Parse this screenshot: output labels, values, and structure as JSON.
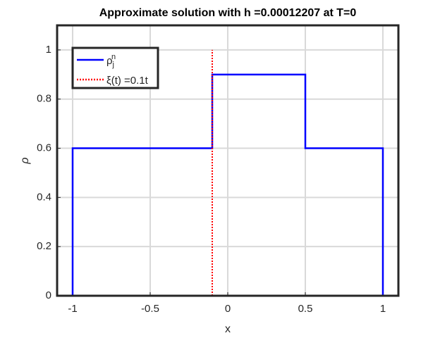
{
  "chart_data": {
    "type": "line",
    "title": "Approximate solution with h =0.00012207 at T=0",
    "x_label": "x",
    "y_label": "ρ",
    "series": [
      {
        "name": "ρ_j^n",
        "color": "#0000ff",
        "style": "solid",
        "x": [
          -1,
          -1,
          -0.1,
          -0.1,
          0.5,
          0.5,
          1,
          1
        ],
        "values": [
          0,
          0.6,
          0.6,
          0.9,
          0.9,
          0.6,
          0.6,
          0
        ]
      },
      {
        "name": "ξ(t) =0.1t",
        "color": "#ff0000",
        "style": "dotted",
        "x": [
          -0.1,
          -0.1
        ],
        "values": [
          0,
          1
        ]
      }
    ],
    "xlim": [
      -1.1,
      1.1
    ],
    "xticks": [
      -1,
      -0.5,
      0,
      0.5,
      1
    ],
    "ylim": [
      0,
      1.1
    ],
    "yticks": [
      0,
      0.2,
      0.4,
      0.6,
      0.8,
      1
    ],
    "grid": true,
    "legend": "upper left"
  }
}
